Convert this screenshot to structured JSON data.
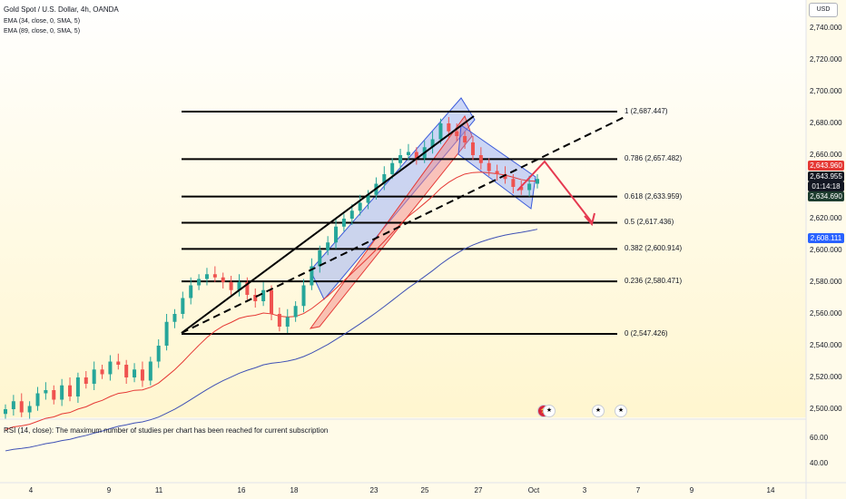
{
  "legend": {
    "symbol": "Gold Spot / U.S. Dollar, 4h, OANDA",
    "ema1": "EMA (34, close, 0, SMA, 5)",
    "ema2": "EMA (89, close, 0, SMA, 5)"
  },
  "currency": "USD",
  "price_axis": [
    "2,740.000",
    "2,720.000",
    "2,700.000",
    "2,680.000",
    "2,660.000",
    "2,620.000",
    "2,600.000",
    "2,580.000",
    "2,560.000",
    "2,540.000",
    "2,520.000",
    "2,500.000"
  ],
  "price_tags": {
    "last_price": "2,643.960",
    "last_high": "2,643.955",
    "countdown": "01:14:18",
    "ema34": "2,634.690",
    "ema89": "2,608.111"
  },
  "fib_levels": [
    {
      "label": "1 (2,687.447)",
      "value": 2687.447
    },
    {
      "label": "0.786 (2,657.482)",
      "value": 2657.482
    },
    {
      "label": "0.618 (2,633.959)",
      "value": 2633.959
    },
    {
      "label": "0.5 (2,617.436)",
      "value": 2617.436
    },
    {
      "label": "0.382 (2,600.914)",
      "value": 2600.914
    },
    {
      "label": "0.236 (2,580.471)",
      "value": 2580.471
    },
    {
      "label": "0 (2,547.426)",
      "value": 2547.426
    }
  ],
  "rsi": {
    "text": "RSI (14, close): The maximum number of studies per chart has been reached for current subscription",
    "axis": [
      "60.00",
      "40.00"
    ]
  },
  "x_axis": [
    "4",
    "9",
    "11",
    "16",
    "18",
    "23",
    "25",
    "27",
    "Oct",
    "3",
    "7",
    "9",
    "14"
  ],
  "colors": {
    "up": "#26a69a",
    "down": "#ef5350",
    "ema34": "#e53935",
    "ema89": "#3f51b5",
    "channel_blue": "#4a6cf7",
    "channel_red": "#f48a8a",
    "arrow": "#e53950"
  },
  "chart_data": {
    "type": "candlestick",
    "title": "Gold Spot / U.S. Dollar, 4h, OANDA",
    "ylim": [
      2495,
      2750
    ],
    "x_labels": [
      "4",
      "9",
      "11",
      "16",
      "18",
      "23",
      "25",
      "27",
      "Oct",
      "3",
      "7",
      "9",
      "14"
    ],
    "candles_close": [
      2500,
      2505,
      2498,
      2502,
      2510,
      2512,
      2506,
      2515,
      2508,
      2520,
      2516,
      2525,
      2522,
      2530,
      2528,
      2520,
      2525,
      2518,
      2530,
      2540,
      2555,
      2560,
      2570,
      2578,
      2582,
      2585,
      2583,
      2580,
      2575,
      2580,
      2572,
      2568,
      2575,
      2560,
      2552,
      2558,
      2565,
      2578,
      2590,
      2600,
      2605,
      2615,
      2620,
      2625,
      2630,
      2635,
      2642,
      2648,
      2655,
      2660,
      2662,
      2658,
      2665,
      2670,
      2680,
      2675,
      2672,
      2668,
      2660,
      2655,
      2650,
      2648,
      2645,
      2640,
      2638,
      2642,
      2645
    ],
    "ema34_last": 2634.69,
    "ema89_last": 2608.111,
    "last_price": 2643.96
  }
}
